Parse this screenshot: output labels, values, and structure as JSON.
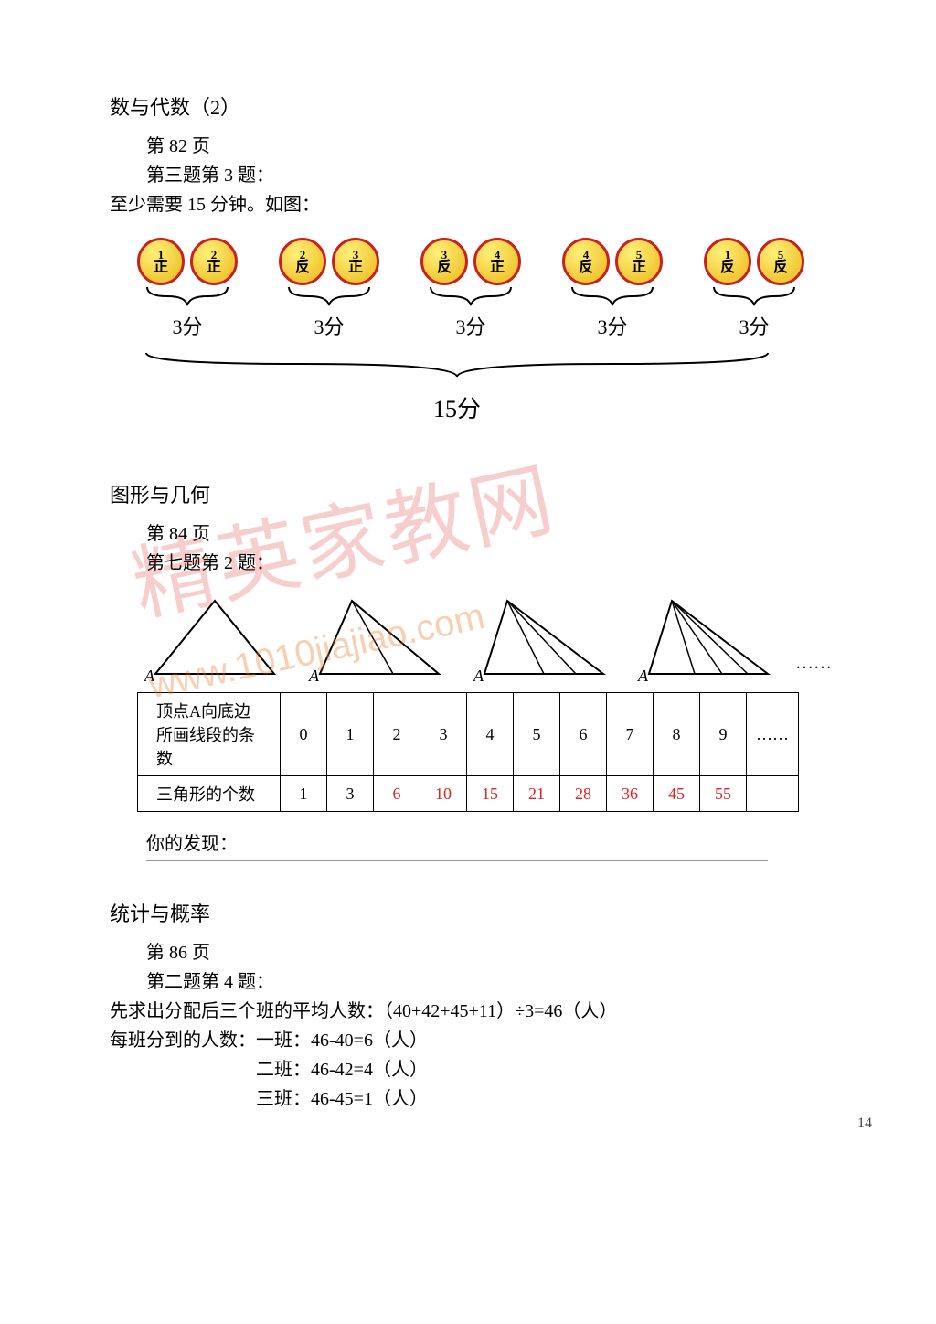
{
  "section1": {
    "title": "数与代数（2）",
    "page_ref": "第 82 页",
    "q_ref": "第三题第 3 题：",
    "answer": "至少需要 15 分钟。如图：",
    "groups": [
      {
        "coins": [
          {
            "n": "1",
            "s": "正"
          },
          {
            "n": "2",
            "s": "正"
          }
        ],
        "label": "3分"
      },
      {
        "coins": [
          {
            "n": "2",
            "s": "反"
          },
          {
            "n": "3",
            "s": "正"
          }
        ],
        "label": "3分"
      },
      {
        "coins": [
          {
            "n": "3",
            "s": "反"
          },
          {
            "n": "4",
            "s": "正"
          }
        ],
        "label": "3分"
      },
      {
        "coins": [
          {
            "n": "4",
            "s": "反"
          },
          {
            "n": "5",
            "s": "正"
          }
        ],
        "label": "3分"
      },
      {
        "coins": [
          {
            "n": "1",
            "s": "反"
          },
          {
            "n": "5",
            "s": "反"
          }
        ],
        "label": "3分"
      }
    ],
    "total": "15分",
    "coin_fill": "#f2c836",
    "coin_border": "#c92020"
  },
  "section2": {
    "title": "图形与几何",
    "page_ref": "第 84 页",
    "q_ref": "第七题第 2 题：",
    "vertex_label": "A",
    "table": {
      "row1_label": "顶点A向底边所画线段的条数",
      "row1": [
        "0",
        "1",
        "2",
        "3",
        "4",
        "5",
        "6",
        "7",
        "8",
        "9",
        "……"
      ],
      "row2_label": "三角形的个数",
      "row2": [
        "1",
        "3",
        "6",
        "10",
        "15",
        "21",
        "28",
        "36",
        "45",
        "55",
        ""
      ],
      "red_start_index": 2
    },
    "discover": "你的发现："
  },
  "section3": {
    "title": "统计与概率",
    "page_ref": "第 86 页",
    "q_ref": "第二题第 4 题：",
    "line1": "先求出分配后三个班的平均人数：（40+42+45+11）÷3=46（人）",
    "line2": "每班分到的人数：一班：46-40=6（人）",
    "line3": "二班：46-42=4（人）",
    "line4": "三班：46-45=1（人）"
  },
  "watermark": {
    "text": "精英家教网",
    "url": "www.1010jiajiao.com"
  },
  "page_number": "14"
}
